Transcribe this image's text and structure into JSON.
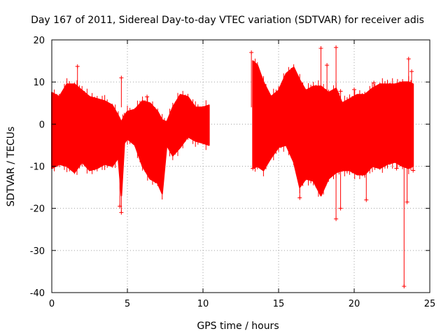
{
  "colors": {
    "background": "#ffffff",
    "series": "#ff0000",
    "grid": "#a0a0a0",
    "axis": "#000000"
  },
  "chart_data": {
    "type": "scatter",
    "title": "Day 167 of 2011, Sidereal Day-to-day VTEC variation (SDTVAR) for receiver adis",
    "xlabel": "GPS time / hours",
    "ylabel": "SDTVAR / TECUs",
    "xlim": [
      0,
      25
    ],
    "ylim": [
      -40,
      20
    ],
    "xticks": [
      0,
      5,
      10,
      15,
      20,
      25
    ],
    "yticks": [
      -40,
      -30,
      -20,
      -10,
      0,
      10,
      20
    ],
    "xtick_labels": [
      "0",
      "5",
      "10",
      "15",
      "20",
      "25"
    ],
    "ytick_labels": [
      "-40",
      "-30",
      "-20",
      "-10",
      "0",
      "10",
      "20"
    ],
    "grid": true,
    "marker": "plus-with-error-bars",
    "band": [
      {
        "x": 0.0,
        "upper": 7.5,
        "lower": -10.5
      },
      {
        "x": 0.5,
        "upper": 6.5,
        "lower": -9.5
      },
      {
        "x": 1.0,
        "upper": 9.5,
        "lower": -10.0
      },
      {
        "x": 1.5,
        "upper": 9.5,
        "lower": -11.5
      },
      {
        "x": 2.0,
        "upper": 8.0,
        "lower": -9.0
      },
      {
        "x": 2.5,
        "upper": 6.5,
        "lower": -11.0
      },
      {
        "x": 3.0,
        "upper": 6.0,
        "lower": -10.5
      },
      {
        "x": 3.5,
        "upper": 5.5,
        "lower": -9.5
      },
      {
        "x": 4.0,
        "upper": 4.5,
        "lower": -10.0
      },
      {
        "x": 4.4,
        "upper": 2.0,
        "lower": -8.0
      },
      {
        "x": 4.6,
        "upper": 0.5,
        "lower": -17.0
      },
      {
        "x": 4.8,
        "upper": 2.0,
        "lower": -4.5
      },
      {
        "x": 5.0,
        "upper": 3.0,
        "lower": -3.5
      },
      {
        "x": 5.5,
        "upper": 3.5,
        "lower": -5.0
      },
      {
        "x": 6.0,
        "upper": 5.5,
        "lower": -10.0
      },
      {
        "x": 6.5,
        "upper": 5.0,
        "lower": -13.0
      },
      {
        "x": 7.0,
        "upper": 3.0,
        "lower": -14.0
      },
      {
        "x": 7.3,
        "upper": 1.0,
        "lower": -16.5
      },
      {
        "x": 7.6,
        "upper": 0.5,
        "lower": -5.0
      },
      {
        "x": 8.0,
        "upper": 4.0,
        "lower": -7.5
      },
      {
        "x": 8.5,
        "upper": 7.0,
        "lower": -5.5
      },
      {
        "x": 9.0,
        "upper": 6.5,
        "lower": -3.0
      },
      {
        "x": 9.5,
        "upper": 4.0,
        "lower": -4.0
      },
      {
        "x": 10.0,
        "upper": 4.0,
        "lower": -4.5
      },
      {
        "x": 10.4,
        "upper": 4.5,
        "lower": -5.0
      },
      {
        "x": 13.3,
        "upper": 15.0,
        "lower": -10.5
      },
      {
        "x": 13.6,
        "upper": 14.0,
        "lower": -10.0
      },
      {
        "x": 14.0,
        "upper": 10.0,
        "lower": -11.0
      },
      {
        "x": 14.5,
        "upper": 6.5,
        "lower": -8.0
      },
      {
        "x": 15.0,
        "upper": 8.0,
        "lower": -5.5
      },
      {
        "x": 15.5,
        "upper": 12.0,
        "lower": -5.0
      },
      {
        "x": 16.0,
        "upper": 13.5,
        "lower": -9.0
      },
      {
        "x": 16.4,
        "upper": 10.5,
        "lower": -15.0
      },
      {
        "x": 16.8,
        "upper": 8.0,
        "lower": -13.0
      },
      {
        "x": 17.3,
        "upper": 9.0,
        "lower": -13.5
      },
      {
        "x": 17.8,
        "upper": 9.0,
        "lower": -17.0
      },
      {
        "x": 18.3,
        "upper": 7.5,
        "lower": -13.0
      },
      {
        "x": 18.8,
        "upper": 8.5,
        "lower": -11.5
      },
      {
        "x": 19.2,
        "upper": 5.0,
        "lower": -11.0
      },
      {
        "x": 19.7,
        "upper": 6.0,
        "lower": -11.0
      },
      {
        "x": 20.2,
        "upper": 7.0,
        "lower": -12.0
      },
      {
        "x": 20.7,
        "upper": 7.0,
        "lower": -12.0
      },
      {
        "x": 21.2,
        "upper": 8.5,
        "lower": -10.0
      },
      {
        "x": 21.7,
        "upper": 9.5,
        "lower": -10.5
      },
      {
        "x": 22.2,
        "upper": 9.5,
        "lower": -9.5
      },
      {
        "x": 22.7,
        "upper": 9.5,
        "lower": -9.0
      },
      {
        "x": 23.2,
        "upper": 10.0,
        "lower": -10.0
      },
      {
        "x": 23.6,
        "upper": 10.0,
        "lower": -10.5
      },
      {
        "x": 23.9,
        "upper": 9.5,
        "lower": -10.0
      }
    ],
    "outliers": [
      {
        "x": 1.7,
        "y": 13.7
      },
      {
        "x": 4.6,
        "y": 11.0
      },
      {
        "x": 4.6,
        "y": -21.0
      },
      {
        "x": 4.5,
        "y": -19.5
      },
      {
        "x": 6.3,
        "y": 6.5
      },
      {
        "x": 13.2,
        "y": 17.0
      },
      {
        "x": 13.3,
        "y": -10.5
      },
      {
        "x": 16.4,
        "y": -17.5
      },
      {
        "x": 17.8,
        "y": 18.0
      },
      {
        "x": 18.2,
        "y": 14.0
      },
      {
        "x": 18.8,
        "y": 18.2
      },
      {
        "x": 18.8,
        "y": -22.5
      },
      {
        "x": 19.1,
        "y": -20.0
      },
      {
        "x": 19.1,
        "y": 7.8
      },
      {
        "x": 20.0,
        "y": 8.2
      },
      {
        "x": 20.8,
        "y": -18.0
      },
      {
        "x": 21.3,
        "y": 9.8
      },
      {
        "x": 22.8,
        "y": -10.5
      },
      {
        "x": 23.3,
        "y": -38.5
      },
      {
        "x": 23.5,
        "y": -18.5
      },
      {
        "x": 23.6,
        "y": 15.5
      },
      {
        "x": 23.8,
        "y": 12.5
      },
      {
        "x": 23.9,
        "y": -11.0
      }
    ]
  }
}
